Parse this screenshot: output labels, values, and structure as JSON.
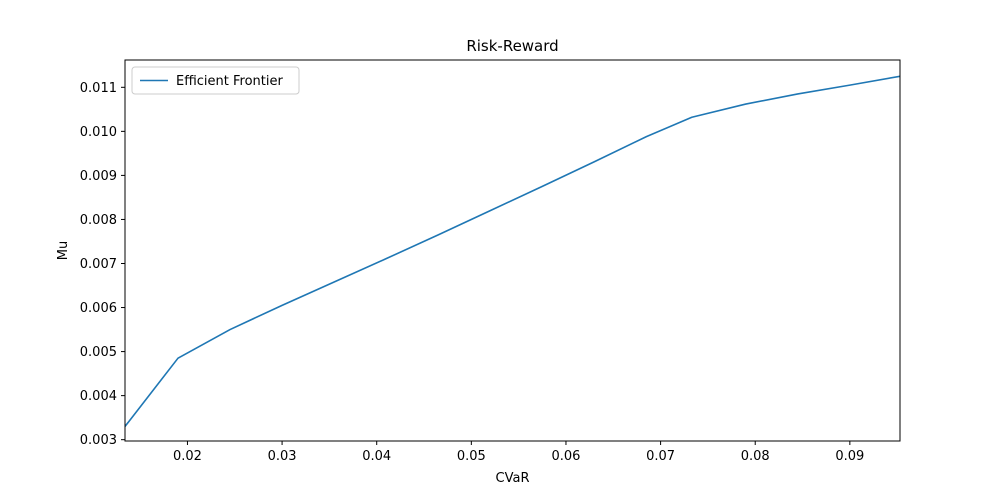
{
  "chart_data": {
    "type": "line",
    "title": "Risk-Reward",
    "xlabel": "CVaR",
    "ylabel": "Mu",
    "xlim": [
      0.0134,
      0.0953
    ],
    "ylim": [
      0.00297,
      0.01162
    ],
    "xticks": [
      0.02,
      0.03,
      0.04,
      0.05,
      0.06,
      0.07,
      0.08,
      0.09
    ],
    "xtick_labels": [
      "0.02",
      "0.03",
      "0.04",
      "0.05",
      "0.06",
      "0.07",
      "0.08",
      "0.09"
    ],
    "yticks": [
      0.003,
      0.004,
      0.005,
      0.006,
      0.007,
      0.008,
      0.009,
      0.01,
      0.011
    ],
    "ytick_labels": [
      "0.003",
      "0.004",
      "0.005",
      "0.006",
      "0.007",
      "0.008",
      "0.009",
      "0.010",
      "0.011"
    ],
    "grid": false,
    "legend_position": "upper-left",
    "series": [
      {
        "name": "Efficient Frontier",
        "color": "#1f77b4",
        "x": [
          0.0134,
          0.019,
          0.0245,
          0.03,
          0.0355,
          0.041,
          0.0465,
          0.052,
          0.0575,
          0.063,
          0.0685,
          0.0733,
          0.079,
          0.0845,
          0.09,
          0.0953
        ],
        "y": [
          0.0033,
          0.00485,
          0.0055,
          0.00605,
          0.00658,
          0.00711,
          0.00765,
          0.0082,
          0.00875,
          0.00931,
          0.00988,
          0.01032,
          0.01062,
          0.01085,
          0.01105,
          0.01125
        ]
      }
    ]
  }
}
